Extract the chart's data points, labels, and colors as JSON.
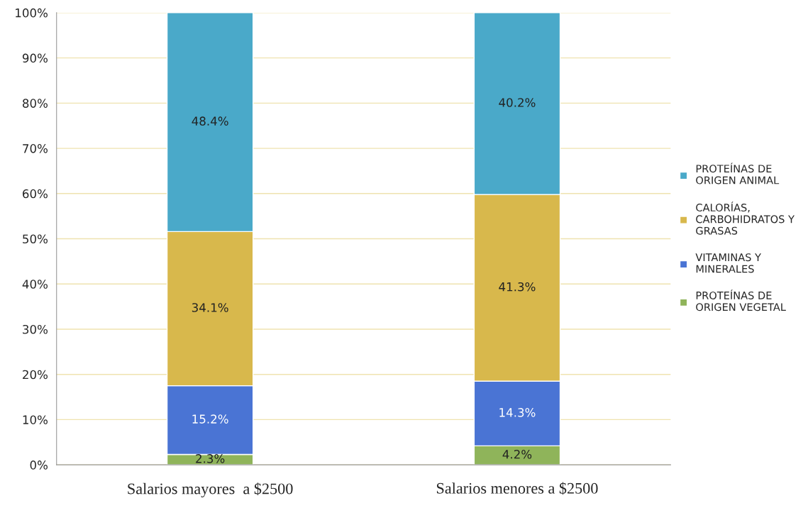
{
  "chart_data": {
    "type": "bar",
    "stacked": true,
    "categories": [
      "Salarios mayores  a $2500",
      "Salarios menores a $2500"
    ],
    "series": [
      {
        "name": "PROTEÍNAS DE\nORIGEN VEGETAL",
        "color": "#8fb45a",
        "values": [
          2.3,
          4.2
        ],
        "value_labels": [
          "2.3%",
          "4.2%"
        ]
      },
      {
        "name": "VITAMINAS Y\nMINERALES",
        "color": "#4a74d4",
        "values": [
          15.2,
          14.3
        ],
        "value_labels": [
          "15.2%",
          "14.3%"
        ]
      },
      {
        "name": "CALORÍAS,\nCARBOHIDRATOS Y\nGRASAS",
        "color": "#d8b84c",
        "values": [
          34.1,
          41.3
        ],
        "value_labels": [
          "34.1%",
          "41.3%"
        ]
      },
      {
        "name": "PROTEÍNAS DE\nORIGEN ANIMAL",
        "color": "#4aa9c9",
        "values": [
          48.4,
          40.2
        ],
        "value_labels": [
          "48.4%",
          "40.2%"
        ]
      }
    ],
    "ylim": [
      0,
      100
    ],
    "yticks": [
      {
        "value": 0,
        "label": "0%"
      },
      {
        "value": 10,
        "label": "10%"
      },
      {
        "value": 20,
        "label": "20%"
      },
      {
        "value": 30,
        "label": "30%"
      },
      {
        "value": 40,
        "label": "40%"
      },
      {
        "value": 50,
        "label": "50%"
      },
      {
        "value": 60,
        "label": "60%"
      },
      {
        "value": 70,
        "label": "70%"
      },
      {
        "value": 80,
        "label": "80%"
      },
      {
        "value": 90,
        "label": "90%"
      },
      {
        "value": 100,
        "label": "100%"
      }
    ],
    "grid": "y",
    "legend": "right"
  }
}
